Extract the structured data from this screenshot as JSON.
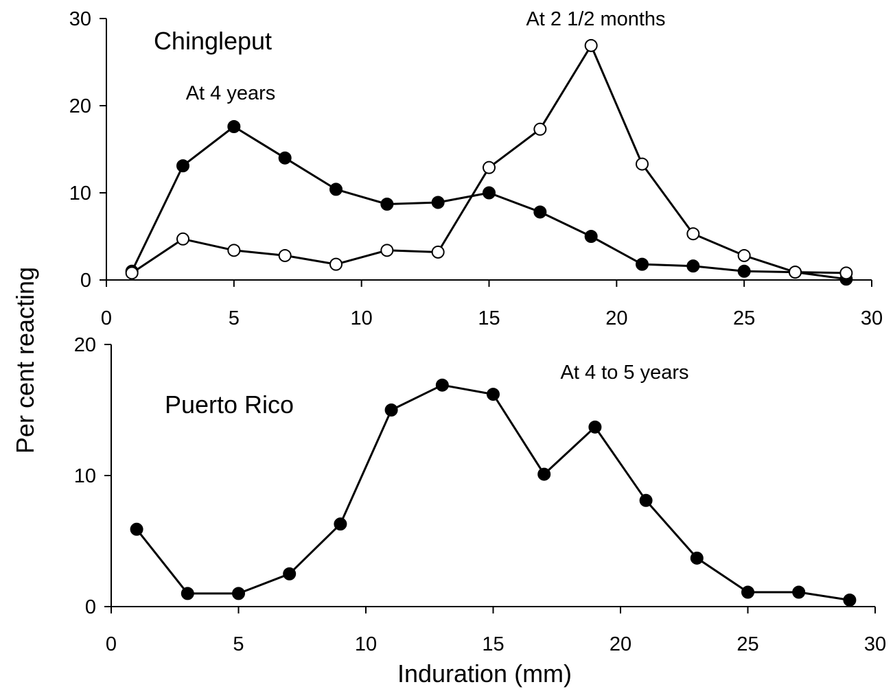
{
  "chart_data": [
    {
      "type": "line",
      "panel_label": "Chingleput",
      "xlim": [
        0,
        30
      ],
      "ylim": [
        0,
        30
      ],
      "xticks": [
        0,
        5,
        10,
        15,
        20,
        25,
        30
      ],
      "yticks": [
        0,
        10,
        20,
        30
      ],
      "series": [
        {
          "annotation": "At 4 years",
          "marker": "filled-circle",
          "x": [
            1,
            3,
            5,
            7,
            9,
            11,
            13,
            15,
            17,
            19,
            21,
            23,
            25,
            27,
            29
          ],
          "y": [
            1.0,
            13.1,
            17.6,
            14.0,
            10.4,
            8.7,
            8.9,
            10.0,
            7.8,
            5.0,
            1.8,
            1.6,
            1.0,
            0.9,
            0.1
          ]
        },
        {
          "annotation": "At 2 1/2 months",
          "marker": "open-circle",
          "x": [
            1,
            3,
            5,
            7,
            9,
            11,
            13,
            15,
            17,
            19,
            21,
            23,
            25,
            27,
            29
          ],
          "y": [
            0.8,
            4.7,
            3.4,
            2.8,
            1.8,
            3.4,
            3.2,
            12.9,
            17.3,
            26.9,
            13.3,
            5.3,
            2.8,
            0.9,
            0.8
          ]
        }
      ]
    },
    {
      "type": "line",
      "panel_label": "Puerto Rico",
      "xlim": [
        0,
        30
      ],
      "ylim": [
        0,
        20
      ],
      "xticks": [
        0,
        5,
        10,
        15,
        20,
        25,
        30
      ],
      "yticks": [
        0,
        10,
        20
      ],
      "series": [
        {
          "annotation": "At 4 to 5 years",
          "marker": "filled-circle",
          "x": [
            1,
            3,
            5,
            7,
            9,
            11,
            13,
            15,
            17,
            19,
            21,
            23,
            25,
            27,
            29
          ],
          "y": [
            5.9,
            1.0,
            1.0,
            2.5,
            6.3,
            15.0,
            16.9,
            16.2,
            10.1,
            13.7,
            8.1,
            3.7,
            1.1,
            1.1,
            0.5
          ]
        }
      ]
    }
  ],
  "xlabel": "Induration (mm)",
  "ylabel": "Per cent reacting",
  "colors": {
    "line": "#000000",
    "marker_fill": "#000000",
    "open_marker_fill": "#ffffff",
    "background": "#ffffff"
  }
}
